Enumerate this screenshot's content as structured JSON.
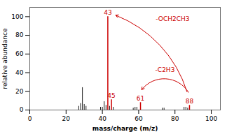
{
  "chart_data": {
    "type": "stem",
    "xlabel": "mass/charge (m/z)",
    "ylabel": "relative abundance",
    "xlim": [
      0,
      105
    ],
    "ylim": [
      0,
      110
    ],
    "xticks": [
      0,
      20,
      40,
      60,
      80,
      100
    ],
    "yticks": [
      0,
      20,
      40,
      60,
      80,
      100
    ],
    "series": [
      {
        "color": "#000000",
        "x": [
          27,
          28,
          29,
          30,
          31,
          39,
          40,
          41,
          42,
          44,
          46,
          57,
          58,
          59,
          73,
          74,
          85,
          86,
          87
        ],
        "values": [
          4,
          7,
          24,
          6,
          4,
          3,
          3,
          9,
          5,
          4,
          3,
          2,
          3,
          3,
          2,
          2,
          3,
          3,
          2
        ]
      },
      {
        "color": "#cc0000",
        "x": [
          43,
          45,
          61,
          88
        ],
        "values": [
          100,
          11,
          8,
          5
        ],
        "labels": [
          "43",
          "45",
          "61",
          "88"
        ]
      }
    ],
    "annotations": [
      {
        "text": "-OCH2CH3",
        "from": 88,
        "to": 43,
        "color": "#cc0000"
      },
      {
        "text": "-C2H3",
        "from": 88,
        "to": 61,
        "color": "#cc0000"
      }
    ]
  }
}
